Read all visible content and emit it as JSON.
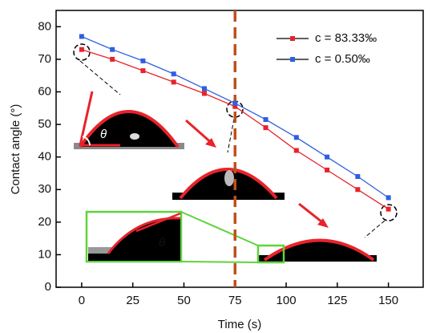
{
  "chart_data": {
    "type": "line",
    "x_label": "Time (s)",
    "y_label": "Contact angle (°)",
    "x": [
      0,
      15,
      30,
      45,
      60,
      75,
      90,
      105,
      120,
      135,
      150
    ],
    "series": [
      {
        "name": "c = 83.33‰",
        "color": "#e8232a",
        "values": [
          73,
          70,
          66.5,
          63,
          59.5,
          55.5,
          49,
          42,
          36,
          30,
          24
        ]
      },
      {
        "name": "c = 0.50‰",
        "color": "#2f5fe0",
        "values": [
          77,
          73,
          69.5,
          65.5,
          61,
          56.5,
          51.5,
          46,
          40,
          34,
          27.5
        ]
      }
    ],
    "xlim": [
      -12.5,
      167
    ],
    "ylim": [
      0,
      85
    ],
    "xticks": [
      0,
      25,
      50,
      75,
      100,
      125,
      150
    ],
    "yticks": [
      0,
      10,
      20,
      30,
      40,
      50,
      60,
      70,
      80
    ],
    "vline": 75,
    "vline_color": "#c0501c",
    "legend": "upper right",
    "annotations": [
      "θ",
      "θ"
    ]
  }
}
